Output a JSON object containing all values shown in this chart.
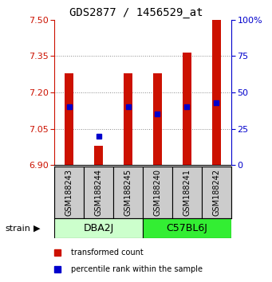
{
  "title": "GDS2877 / 1456529_at",
  "samples": [
    "GSM188243",
    "GSM188244",
    "GSM188245",
    "GSM188240",
    "GSM188241",
    "GSM188242"
  ],
  "transformed_counts": [
    7.28,
    6.98,
    7.28,
    7.28,
    7.365,
    7.5
  ],
  "percentile_ranks": [
    40,
    20,
    40,
    35,
    40,
    43
  ],
  "bar_bottom": 6.9,
  "ylim": [
    6.9,
    7.5
  ],
  "yticks": [
    6.9,
    7.05,
    7.2,
    7.35,
    7.5
  ],
  "right_yticks": [
    0,
    25,
    50,
    75,
    100
  ],
  "bar_color": "#cc1100",
  "percentile_color": "#0000cc",
  "grid_color": "#888888",
  "title_fontsize": 10,
  "tick_fontsize": 8,
  "bar_width": 0.3,
  "percentile_marker_size": 5,
  "sample_box_color": "#cccccc",
  "group_dba_color": "#ccffcc",
  "group_c57_color": "#33ee33",
  "legend_tc": "transformed count",
  "legend_pr": "percentile rank within the sample",
  "strain_label": "strain"
}
